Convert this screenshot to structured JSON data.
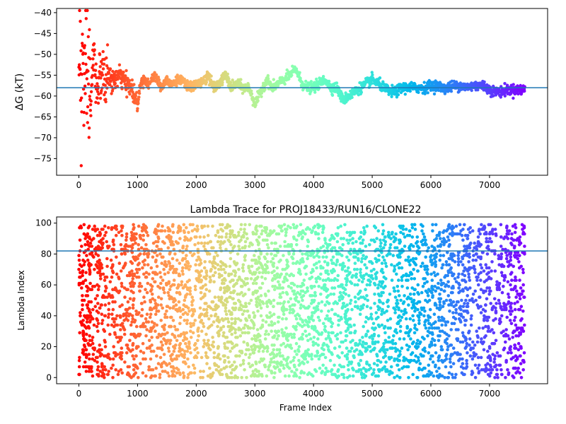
{
  "chart_data": [
    {
      "type": "scatter",
      "title": "",
      "xlabel": "",
      "ylabel": "ΔG (kT)",
      "xlim": [
        -380,
        7990
      ],
      "ylim": [
        -79,
        -39
      ],
      "x_ticks": [
        0,
        1000,
        2000,
        3000,
        4000,
        5000,
        6000,
        7000
      ],
      "y_ticks": [
        -40,
        -45,
        -50,
        -55,
        -60,
        -65,
        -70,
        -75
      ],
      "hline": -58,
      "colormap": "rainbow (red→violet by frame index)",
      "x_range": [
        0,
        7600
      ],
      "series": [
        {
          "x": [
            0,
            20,
            40,
            60,
            80,
            100,
            130,
            160,
            200,
            250,
            300,
            350,
            400,
            450,
            500,
            550,
            600,
            700,
            800,
            900,
            1000,
            1050,
            1100,
            1200,
            1300,
            1400,
            1500,
            1600,
            1700,
            1800,
            1900,
            2000,
            2100,
            2200,
            2300,
            2400,
            2500,
            2600,
            2700,
            2800,
            2900,
            3000,
            3100,
            3200,
            3300,
            3400,
            3500,
            3600,
            3700,
            3800,
            3900,
            4000,
            4100,
            4200,
            4300,
            4400,
            4500,
            4600,
            4700,
            4800,
            4900,
            5000,
            5100,
            5200,
            5300,
            5400,
            5500,
            5600,
            5700,
            5800,
            5900,
            6000,
            6100,
            6200,
            6300,
            6400,
            6500,
            6600,
            6700,
            6800,
            6900,
            7000,
            7100,
            7200,
            7300,
            7400,
            7500,
            7600
          ],
          "y": [
            -50,
            -40,
            -70,
            -48,
            -54,
            -58,
            -60,
            -55,
            -62,
            -50,
            -58,
            -56,
            -55,
            -57,
            -54,
            -57,
            -56,
            -55,
            -57,
            -58,
            -62,
            -57,
            -56,
            -57,
            -55,
            -58,
            -56,
            -57,
            -56,
            -57,
            -58,
            -57,
            -57,
            -55,
            -58,
            -57,
            -55,
            -58,
            -57,
            -58,
            -58,
            -62,
            -59,
            -56,
            -58,
            -57,
            -56,
            -55,
            -53.5,
            -57,
            -58,
            -58,
            -57,
            -56,
            -58,
            -58,
            -61,
            -60,
            -59,
            -58,
            -57,
            -56,
            -57,
            -58,
            -59,
            -59,
            -58,
            -58,
            -58,
            -58,
            -58,
            -57.5,
            -57.5,
            -58,
            -58,
            -57.5,
            -57.5,
            -58,
            -57.5,
            -57.5,
            -57.5,
            -58.5,
            -59,
            -59,
            -58.5,
            -58.5,
            -58.5,
            -58.5
          ]
        }
      ],
      "grid": false
    },
    {
      "type": "scatter",
      "title": "Lambda Trace for PROJ18433/RUN16/CLONE22",
      "xlabel": "Frame Index",
      "ylabel": "Lambda Index",
      "xlim": [
        -380,
        7990
      ],
      "ylim": [
        -4,
        104
      ],
      "x_ticks": [
        0,
        1000,
        2000,
        3000,
        4000,
        5000,
        6000,
        7000
      ],
      "y_ticks": [
        0,
        20,
        40,
        60,
        80,
        100
      ],
      "hline": 82,
      "colormap": "rainbow (red→violet by frame index)",
      "x_range": [
        0,
        7600
      ],
      "y_range": [
        0,
        99
      ],
      "grid": false
    }
  ]
}
